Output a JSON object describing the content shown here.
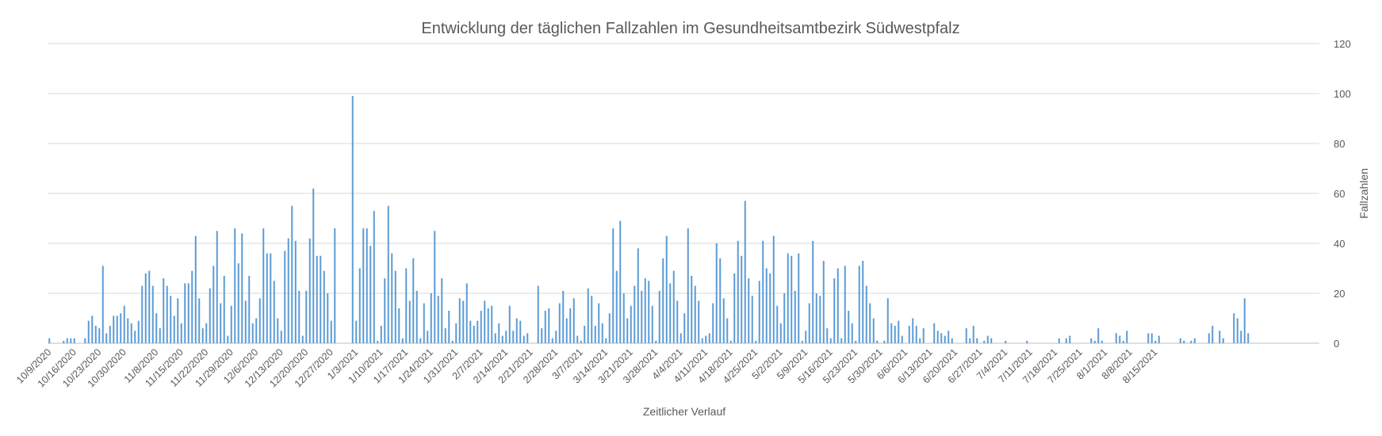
{
  "chart_data": {
    "type": "bar",
    "title": "Entwicklung der täglichen Fallzahlen im Gesundheitsamtbezirk Südwestpfalz",
    "xlabel": "Zeitlicher Verlauf",
    "ylabel": "Fallzahlen",
    "y_axis_side": "right",
    "ylim": [
      0,
      120
    ],
    "yticks": [
      0,
      20,
      40,
      60,
      80,
      100,
      120
    ],
    "grid": true,
    "legend": "none",
    "bar_color": "#5B9BD5",
    "grid_color": "#D9D9D9",
    "start_date": "2020-10-09",
    "tick_labels": [
      "10/9/2020",
      "10/16/2020",
      "10/23/2020",
      "10/30/2020",
      "11/8/2020",
      "11/15/2020",
      "11/22/2020",
      "11/29/2020",
      "12/6/2020",
      "12/13/2020",
      "12/20/2020",
      "12/27/2020",
      "1/3/2021",
      "1/10/2021",
      "1/17/2021",
      "1/24/2021",
      "1/31/2021",
      "2/7/2021",
      "2/14/2021",
      "2/21/2021",
      "2/28/2021",
      "3/7/2021",
      "3/14/2021",
      "3/21/2021",
      "3/28/2021",
      "4/4/2021",
      "4/11/2021",
      "4/18/2021",
      "4/25/2021",
      "5/2/2021",
      "5/9/2021",
      "5/16/2021",
      "5/23/2021",
      "5/30/2021",
      "6/6/2021",
      "6/13/2021",
      "6/20/2021",
      "6/27/2021",
      "7/4/2021",
      "7/11/2021",
      "7/18/2021",
      "7/25/2021",
      "8/1/2021",
      "8/8/2021",
      "8/15/2021"
    ],
    "tick_day_index": [
      0,
      7,
      14,
      21,
      30,
      37,
      44,
      51,
      58,
      65,
      72,
      79,
      86,
      93,
      100,
      107,
      114,
      121,
      128,
      135,
      142,
      149,
      156,
      163,
      170,
      177,
      184,
      191,
      198,
      205,
      212,
      219,
      226,
      233,
      240,
      247,
      254,
      261,
      268,
      275,
      282,
      289,
      296,
      303,
      310
    ],
    "values": [
      2,
      0,
      0,
      0,
      1,
      2,
      2,
      2,
      0,
      0,
      2,
      9,
      11,
      7,
      6,
      31,
      4,
      7,
      11,
      11,
      12,
      15,
      10,
      8,
      5,
      9,
      23,
      28,
      29,
      23,
      12,
      6,
      26,
      23,
      19,
      11,
      18,
      8,
      24,
      24,
      29,
      43,
      18,
      6,
      8,
      22,
      31,
      45,
      16,
      27,
      3,
      15,
      46,
      32,
      44,
      17,
      27,
      8,
      10,
      18,
      46,
      36,
      36,
      25,
      10,
      5,
      37,
      42,
      55,
      41,
      21,
      3,
      21,
      42,
      62,
      35,
      35,
      29,
      20,
      9,
      46,
      0,
      0,
      0,
      0,
      99,
      9,
      30,
      46,
      46,
      39,
      53,
      1,
      7,
      26,
      55,
      36,
      29,
      14,
      2,
      30,
      17,
      34,
      21,
      2,
      16,
      5,
      20,
      45,
      19,
      26,
      6,
      13,
      1,
      8,
      18,
      17,
      24,
      9,
      7,
      9,
      13,
      17,
      14,
      15,
      4,
      8,
      3,
      5,
      15,
      5,
      10,
      9,
      3,
      4,
      0,
      0,
      23,
      6,
      13,
      14,
      2,
      5,
      16,
      21,
      10,
      14,
      18,
      3,
      1,
      7,
      22,
      19,
      7,
      16,
      8,
      2,
      12,
      46,
      29,
      49,
      20,
      10,
      15,
      23,
      38,
      21,
      26,
      25,
      15,
      1,
      21,
      34,
      43,
      24,
      29,
      17,
      4,
      12,
      46,
      27,
      23,
      17,
      2,
      3,
      4,
      16,
      40,
      34,
      18,
      10,
      1,
      28,
      41,
      35,
      57,
      26,
      19,
      1,
      25,
      41,
      30,
      28,
      43,
      15,
      8,
      20,
      36,
      35,
      21,
      36,
      1,
      5,
      16,
      41,
      20,
      19,
      33,
      6,
      2,
      26,
      30,
      2,
      31,
      13,
      8,
      1,
      31,
      33,
      23,
      16,
      10,
      1,
      0,
      1,
      18,
      8,
      7,
      9,
      3,
      0,
      7,
      10,
      7,
      2,
      6,
      0,
      0,
      8,
      5,
      4,
      3,
      5,
      2,
      0,
      0,
      0,
      6,
      2,
      7,
      2,
      0,
      1,
      3,
      2,
      0,
      0,
      0,
      1,
      0,
      0,
      0,
      0,
      0,
      1,
      0,
      0,
      0,
      0,
      0,
      0,
      0,
      0,
      2,
      0,
      2,
      3,
      0,
      0,
      0,
      0,
      0,
      2,
      1,
      6,
      1,
      0,
      0,
      0,
      4,
      3,
      1,
      5,
      0,
      0,
      0,
      0,
      0,
      4,
      4,
      1,
      3,
      0,
      0,
      0,
      0,
      0,
      2,
      1,
      0,
      1,
      2,
      0,
      0,
      0,
      4,
      7,
      0,
      5,
      2,
      0,
      0,
      12,
      10,
      5,
      18,
      4
    ]
  }
}
